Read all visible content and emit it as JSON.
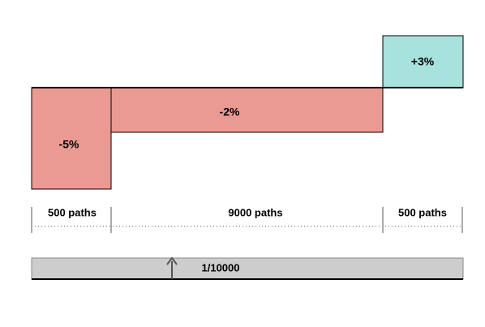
{
  "segments": [
    {
      "label": "-5%",
      "paths": "500 paths"
    },
    {
      "label": "-2%",
      "paths": "9000 paths"
    },
    {
      "label": "+3%",
      "paths": "500 paths"
    }
  ],
  "bar": {
    "label": "1/10000"
  }
}
